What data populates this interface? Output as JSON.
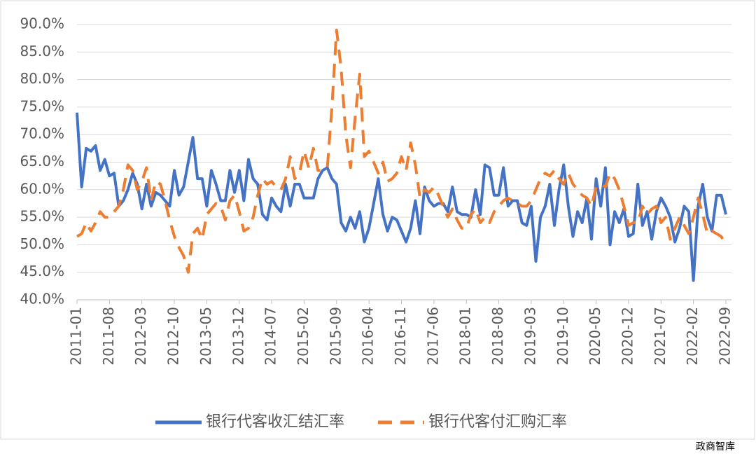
{
  "chart_data": {
    "type": "line",
    "categories": [
      "2011-01",
      null,
      null,
      null,
      null,
      null,
      null,
      "2011-08",
      null,
      null,
      null,
      null,
      null,
      null,
      "2012-03",
      null,
      null,
      null,
      null,
      null,
      null,
      "2012-10",
      null,
      null,
      null,
      null,
      null,
      null,
      "2013-05",
      null,
      null,
      null,
      null,
      null,
      null,
      "2013-12",
      null,
      null,
      null,
      null,
      null,
      null,
      "2014-07",
      null,
      null,
      null,
      null,
      null,
      null,
      "2015-02",
      null,
      null,
      null,
      null,
      null,
      null,
      "2015-09",
      null,
      null,
      null,
      null,
      null,
      null,
      "2016-04",
      null,
      null,
      null,
      null,
      null,
      null,
      "2016-11",
      null,
      null,
      null,
      null,
      null,
      null,
      "2017-06",
      null,
      null,
      null,
      null,
      null,
      null,
      "2018-01",
      null,
      null,
      null,
      null,
      null,
      null,
      "2018-08",
      null,
      null,
      null,
      null,
      null,
      null,
      "2019-03",
      null,
      null,
      null,
      null,
      null,
      null,
      "2019-10",
      null,
      null,
      null,
      null,
      null,
      null,
      "2020-05",
      null,
      null,
      null,
      null,
      null,
      null,
      "2020-12",
      null,
      null,
      null,
      null,
      null,
      null,
      "2021-07",
      null,
      null,
      null,
      null,
      null,
      null,
      "2022-02",
      null,
      null,
      null,
      null,
      null,
      null,
      "2022-09"
    ],
    "series": [
      {
        "name": "银行代客收汇结汇率",
        "color": "#4472c4",
        "dash": false,
        "values": [
          74,
          60.5,
          67.5,
          67,
          68,
          63.5,
          65.5,
          62.5,
          63,
          57,
          58,
          60,
          63,
          61,
          56.5,
          61,
          57,
          59.5,
          59,
          58,
          57,
          63.5,
          59,
          60.5,
          65,
          69.5,
          62,
          62,
          57,
          63.5,
          61,
          58,
          58,
          63.5,
          59.5,
          63.5,
          58,
          65.5,
          62,
          61,
          55.5,
          54.5,
          58.5,
          57,
          56,
          61,
          57,
          61,
          61,
          58.5,
          58.5,
          58.5,
          62,
          63.5,
          64,
          62,
          61,
          54,
          52.5,
          55,
          53,
          56,
          50.5,
          53,
          57.5,
          62,
          55.5,
          52.5,
          55,
          54.5,
          52.5,
          50.5,
          53,
          58,
          52,
          60.5,
          58,
          57,
          57.5,
          57.5,
          56,
          60.5,
          56,
          55.5,
          55.5,
          55,
          60,
          55.5,
          64.5,
          64,
          59,
          59,
          64,
          57,
          58,
          58,
          54,
          53.5,
          57,
          47,
          55,
          57,
          61,
          53.5,
          60,
          64.5,
          57,
          51.5,
          56,
          54,
          58.5,
          51,
          62,
          57,
          64,
          50,
          56,
          54,
          56.5,
          51.5,
          52,
          61,
          53.5,
          56,
          51,
          56,
          58.5,
          57,
          55,
          50.5,
          53,
          57,
          56,
          43.5,
          57,
          61,
          55,
          52.5,
          59,
          59,
          55.5
        ]
      },
      {
        "name": "银行代客付汇购汇率",
        "color": "#ed7d31",
        "dash": true,
        "values": [
          51.5,
          52,
          54,
          52.5,
          54,
          56,
          55,
          55,
          56,
          57,
          60,
          64.5,
          63.5,
          60,
          61.5,
          64,
          58,
          61.5,
          61,
          58,
          54.5,
          51.5,
          49.5,
          48,
          45,
          52,
          53,
          51,
          55.5,
          56.5,
          57.5,
          57,
          54.5,
          58,
          59,
          56,
          52.5,
          53,
          55,
          59,
          62,
          61,
          61.5,
          60.5,
          60,
          62,
          66,
          62,
          63,
          67,
          64,
          67.5,
          63.5,
          63.5,
          64,
          75,
          89,
          82,
          70,
          64,
          73,
          81,
          66,
          67,
          65,
          63,
          65,
          61.5,
          62,
          63,
          66,
          63.5,
          68.5,
          64.5,
          58.5,
          60,
          59.5,
          60.5,
          59,
          57,
          55,
          56.5,
          54.5,
          53,
          53,
          55.5,
          56.5,
          54,
          55,
          54,
          56,
          57,
          58,
          58.5,
          58,
          57.5,
          57,
          57,
          58,
          60,
          62,
          63,
          62.5,
          63.5,
          62,
          61,
          63,
          61,
          60,
          59,
          58.5,
          57,
          60.5,
          61,
          60.5,
          63,
          62,
          60,
          57,
          53.5,
          54,
          54,
          57,
          55.5,
          56.5,
          57,
          54,
          55,
          51,
          53,
          55,
          53.5,
          52,
          55,
          58.5,
          55.5,
          52,
          52.5,
          52,
          51.5,
          50
        ]
      }
    ],
    "ylim": [
      40,
      90
    ],
    "yticks": [
      {
        "value": 40,
        "label": "40.0%"
      },
      {
        "value": 45,
        "label": "45.0%"
      },
      {
        "value": 50,
        "label": "50.0%"
      },
      {
        "value": 55,
        "label": "55.0%"
      },
      {
        "value": 60,
        "label": "60.0%"
      },
      {
        "value": 65,
        "label": "65.0%"
      },
      {
        "value": 70,
        "label": "70.0%"
      },
      {
        "value": 75,
        "label": "75.0%"
      },
      {
        "value": 80,
        "label": "80.0%"
      },
      {
        "value": 85,
        "label": "85.0%"
      },
      {
        "value": 90,
        "label": "90.0%"
      }
    ],
    "grid": true,
    "watermark": "政商智库"
  }
}
